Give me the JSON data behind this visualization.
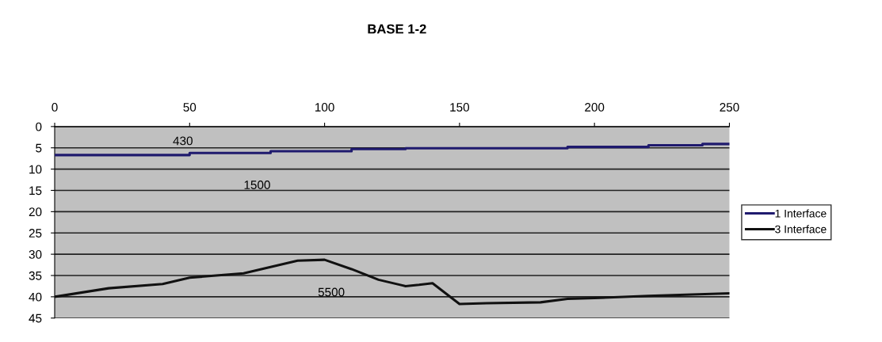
{
  "chart_data": {
    "type": "line",
    "title": "BASE 1-2",
    "series": [
      {
        "name": "1 Interface",
        "color": "#1f1a6e",
        "x": [
          0,
          50,
          50,
          80,
          80,
          110,
          110,
          130,
          130,
          190,
          190,
          220,
          220,
          240,
          240,
          250
        ],
        "values": [
          6.7,
          6.7,
          6.2,
          6.2,
          5.8,
          5.8,
          5.3,
          5.3,
          5.1,
          5.1,
          4.8,
          4.8,
          4.4,
          4.4,
          4.1,
          4.1
        ]
      },
      {
        "name": "3 Interface",
        "color": "#111111",
        "x": [
          0,
          20,
          40,
          50,
          70,
          90,
          100,
          110,
          120,
          130,
          135,
          140,
          150,
          160,
          180,
          190,
          200,
          220,
          250
        ],
        "values": [
          40,
          38,
          37,
          35.5,
          34.5,
          31.5,
          31.3,
          33.5,
          36,
          37.5,
          37.2,
          36.8,
          41.7,
          41.5,
          41.3,
          40.5,
          40.3,
          39.8,
          39.2
        ]
      }
    ],
    "xlim": [
      0,
      250
    ],
    "xticks": [
      0,
      50,
      100,
      150,
      200,
      250
    ],
    "ylim": [
      45,
      0
    ],
    "yticks": [
      0,
      5,
      10,
      15,
      20,
      25,
      30,
      35,
      40,
      45
    ],
    "grid": "y",
    "legend": "right",
    "marker": "none",
    "line_style": "solid",
    "annotations": [
      "430",
      "1500",
      "5500"
    ]
  }
}
